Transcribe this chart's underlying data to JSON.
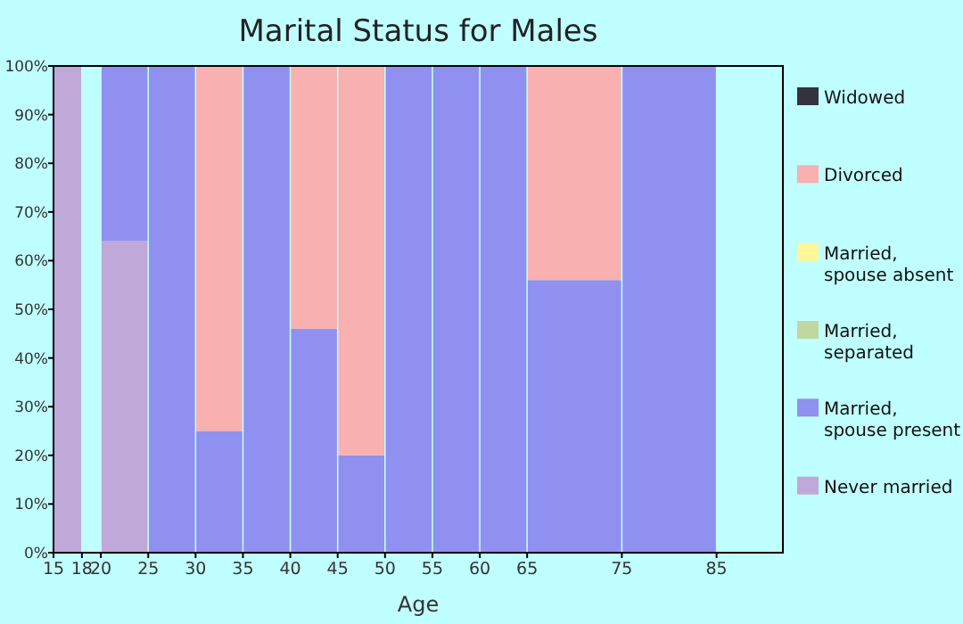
{
  "chart_data": {
    "type": "bar",
    "title": "Marital Status for Males",
    "xlabel": "Age",
    "stacked": true,
    "legend": "right",
    "grid": false,
    "x": [
      16.5,
      19,
      22.5,
      27.5,
      32.5,
      37.5,
      42.5,
      47.5,
      52.5,
      57.5,
      62.5,
      70,
      80
    ],
    "xlim": [
      15,
      92
    ],
    "xticks": [
      15,
      18,
      20,
      25,
      30,
      35,
      40,
      45,
      50,
      55,
      60,
      65,
      75,
      85
    ],
    "ylim": [
      0,
      100
    ],
    "yticks": [
      {
        "value": 0,
        "label": "0%"
      },
      {
        "value": 10,
        "label": "10%"
      },
      {
        "value": 20,
        "label": "20%"
      },
      {
        "value": 30,
        "label": "30%"
      },
      {
        "value": 40,
        "label": "40%"
      },
      {
        "value": 50,
        "label": "50%"
      },
      {
        "value": 60,
        "label": "60%"
      },
      {
        "value": 70,
        "label": "70%"
      },
      {
        "value": 80,
        "label": "80%"
      },
      {
        "value": 90,
        "label": "90%"
      },
      {
        "value": 100,
        "label": "100%"
      }
    ],
    "series": [
      {
        "name": "Never married",
        "color": "#c0a8d8",
        "values": [
          100,
          0,
          64,
          0,
          0,
          0,
          0,
          0,
          0,
          0,
          0,
          0,
          0
        ]
      },
      {
        "name": "Married, spouse present",
        "color": "#9090f0",
        "values": [
          0,
          0,
          36,
          100,
          25,
          100,
          46,
          20,
          100,
          100,
          100,
          56,
          100
        ]
      },
      {
        "name": "Married, separated",
        "color": "#c0d8a0",
        "values": [
          0,
          0,
          0,
          0,
          0,
          0,
          0,
          0,
          0,
          0,
          0,
          0,
          0
        ]
      },
      {
        "name": "Married, spouse absent",
        "color": "#fff799",
        "values": [
          0,
          0,
          0,
          0,
          0,
          0,
          0,
          0,
          0,
          0,
          0,
          0,
          0
        ]
      },
      {
        "name": "Divorced",
        "color": "#f8b0b0",
        "values": [
          0,
          0,
          0,
          0,
          75,
          0,
          54,
          80,
          0,
          0,
          0,
          44,
          0
        ]
      },
      {
        "name": "Widowed",
        "color": "#333340",
        "values": [
          0,
          0,
          0,
          0,
          0,
          0,
          0,
          0,
          0,
          0,
          0,
          0,
          0
        ]
      }
    ]
  }
}
